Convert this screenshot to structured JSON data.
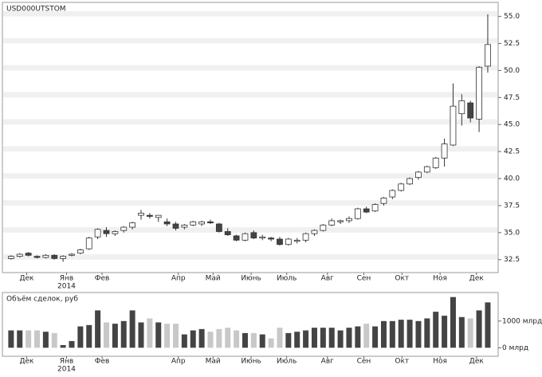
{
  "chart_data": {
    "type": "candlestick",
    "title": "USD000UTSTOM",
    "open": [
      32.6,
      32.8,
      33.1,
      32.8,
      32.7,
      32.9,
      32.6,
      32.9,
      33.1,
      33.5,
      34.6,
      35.2,
      34.9,
      35.2,
      35.5,
      36.6,
      36.6,
      36.4,
      36.0,
      35.8,
      35.5,
      35.7,
      35.8,
      36.0,
      35.8,
      35.1,
      34.7,
      34.3,
      35.0,
      34.5,
      34.5,
      34.4,
      33.9,
      34.2,
      34.3,
      34.9,
      35.2,
      35.7,
      36.0,
      36.1,
      36.3,
      37.2,
      37.0,
      37.7,
      38.3,
      38.9,
      39.5,
      40.1,
      40.6,
      41.0,
      41.9,
      43.1,
      46.0,
      47.0,
      45.5,
      50.4
    ],
    "high": [
      32.9,
      33.1,
      33.2,
      32.9,
      33.0,
      33.0,
      32.9,
      33.1,
      33.5,
      34.6,
      35.4,
      35.5,
      35.2,
      35.6,
      36.0,
      37.1,
      36.8,
      36.6,
      36.3,
      36.0,
      35.8,
      36.1,
      36.1,
      36.2,
      35.9,
      35.4,
      34.8,
      35.0,
      35.2,
      34.8,
      34.6,
      34.6,
      34.5,
      34.5,
      35.0,
      35.3,
      35.8,
      36.3,
      36.2,
      36.5,
      37.3,
      37.4,
      37.7,
      38.3,
      39.0,
      39.6,
      40.1,
      40.7,
      41.2,
      42.0,
      43.7,
      48.8,
      47.8,
      47.2,
      50.4,
      55.2
    ],
    "low": [
      32.5,
      32.7,
      32.8,
      32.6,
      32.6,
      32.5,
      32.3,
      32.8,
      33.0,
      33.4,
      34.4,
      34.6,
      34.7,
      35.0,
      35.3,
      36.2,
      36.3,
      36.0,
      35.6,
      35.2,
      35.3,
      35.6,
      35.6,
      35.8,
      35.0,
      34.7,
      34.2,
      34.2,
      34.4,
      34.3,
      34.2,
      33.8,
      33.8,
      34.0,
      34.1,
      34.7,
      35.1,
      35.6,
      35.8,
      35.9,
      36.2,
      36.8,
      36.9,
      37.5,
      38.1,
      38.8,
      39.4,
      39.9,
      40.5,
      40.9,
      41.1,
      43.0,
      44.9,
      45.2,
      44.3,
      49.8
    ],
    "close": [
      32.8,
      33.0,
      32.9,
      32.7,
      32.9,
      32.6,
      32.8,
      33.0,
      33.4,
      34.5,
      35.3,
      34.9,
      35.1,
      35.5,
      35.9,
      36.8,
      36.5,
      36.6,
      35.8,
      35.4,
      35.7,
      36.0,
      36.0,
      35.9,
      35.1,
      34.8,
      34.3,
      34.9,
      34.5,
      34.6,
      34.4,
      33.9,
      34.4,
      34.3,
      34.9,
      35.2,
      35.7,
      36.1,
      36.1,
      36.3,
      37.2,
      36.9,
      37.6,
      38.2,
      38.9,
      39.5,
      40.0,
      40.6,
      41.1,
      41.9,
      43.2,
      46.7,
      47.2,
      45.6,
      50.3,
      52.4
    ],
    "ylim": [
      31.3,
      56.3
    ],
    "yticks": [
      {
        "value": 32.5,
        "label": "32.5"
      },
      {
        "value": 35,
        "label": "35.0"
      },
      {
        "value": 37.5,
        "label": "37.5"
      },
      {
        "value": 40,
        "label": "40.0"
      },
      {
        "value": 42.5,
        "label": "42.5"
      },
      {
        "value": 45,
        "label": "45.0"
      },
      {
        "value": 47.5,
        "label": "47.5"
      },
      {
        "value": 50,
        "label": "50.0"
      },
      {
        "value": 52.5,
        "label": "52.5"
      },
      {
        "value": 55,
        "label": "55.0"
      }
    ],
    "xlim": [
      -1,
      56.2
    ],
    "xticks": [
      {
        "value": 1.8,
        "label": "Дек"
      },
      {
        "value": 6.4,
        "label": "Янв"
      },
      {
        "value": 10.5,
        "label": "Фев"
      },
      {
        "value": 19.3,
        "label": "Апр"
      },
      {
        "value": 23.3,
        "label": "Май"
      },
      {
        "value": 27.7,
        "label": "Июнь"
      },
      {
        "value": 31.8,
        "label": "Июль"
      },
      {
        "value": 36.5,
        "label": "Авг"
      },
      {
        "value": 40.7,
        "label": "Сен"
      },
      {
        "value": 45.1,
        "label": "Окт"
      },
      {
        "value": 49.5,
        "label": "Ноя"
      },
      {
        "value": 53.7,
        "label": "Дек"
      }
    ],
    "year_label": "2014",
    "up_color": "#ffffff",
    "down_color": "#444444",
    "volume": {
      "title": "Объём сделок, руб",
      "values": [
        650,
        650,
        650,
        650,
        600,
        550,
        100,
        250,
        800,
        850,
        1400,
        950,
        900,
        1000,
        1400,
        950,
        1100,
        950,
        900,
        900,
        500,
        650,
        700,
        600,
        700,
        750,
        650,
        550,
        550,
        500,
        350,
        750,
        550,
        600,
        650,
        750,
        750,
        750,
        650,
        750,
        800,
        900,
        800,
        1000,
        1000,
        1050,
        1050,
        1000,
        1100,
        1350,
        1200,
        1900,
        1150,
        1100,
        1400,
        1700
      ],
      "ylim": [
        -320,
        2070
      ],
      "yticks": [
        {
          "value": 1000,
          "label": "1000 млрд"
        },
        {
          "value": 0,
          "label": "0 млрд"
        }
      ],
      "up_color": "#444444",
      "down_color": "#c8c8c8"
    }
  }
}
